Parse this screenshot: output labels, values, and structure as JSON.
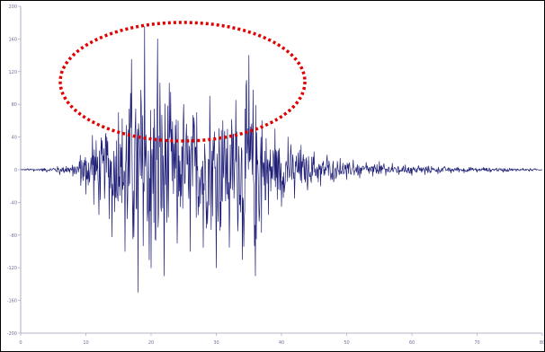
{
  "chart_data": {
    "type": "line",
    "title": "",
    "xlabel": "",
    "ylabel": "",
    "xlim": [
      0,
      80
    ],
    "ylim": [
      -200,
      200
    ],
    "x_ticks": [
      0,
      10,
      20,
      30,
      40,
      50,
      60,
      70,
      80
    ],
    "y_ticks": [
      200,
      160,
      120,
      80,
      40,
      0,
      -40,
      -80,
      -120,
      -160,
      -200
    ],
    "grid": false,
    "legend": "none",
    "series_color": "#1f1f78",
    "annotation_color": "#e00000",
    "series": [
      {
        "x": [
          0,
          1,
          2,
          3,
          4,
          5,
          6,
          7,
          8,
          9,
          10,
          11,
          12,
          13,
          14,
          15,
          16,
          17,
          18,
          19,
          20,
          21,
          22,
          23,
          24,
          25,
          26,
          27,
          28,
          29,
          30,
          31,
          32,
          33,
          34,
          35,
          36,
          37,
          38,
          39,
          40,
          41,
          42,
          43,
          44,
          45,
          46,
          47,
          48,
          49,
          50,
          51,
          52,
          53,
          54,
          55,
          56,
          57,
          58,
          59,
          60,
          61,
          62,
          63,
          64,
          65,
          66,
          67,
          68,
          69,
          70,
          71,
          72,
          73,
          74,
          75,
          76,
          77,
          78,
          79,
          80
        ],
        "y": [
          0,
          1,
          -2,
          1,
          -3,
          2,
          -6,
          4,
          -8,
          10,
          -30,
          42,
          -55,
          40,
          -82,
          70,
          -100,
          135,
          -150,
          175,
          -120,
          160,
          -130,
          95,
          -90,
          80,
          -100,
          70,
          -95,
          90,
          -120,
          60,
          -95,
          85,
          -110,
          140,
          -130,
          60,
          -55,
          50,
          -45,
          40,
          -35,
          30,
          -25,
          22,
          -20,
          18,
          -15,
          14,
          -12,
          12,
          -10,
          9,
          -8,
          10,
          -7,
          8,
          -6,
          6,
          -7,
          5,
          -6,
          4,
          -5,
          4,
          -4,
          3,
          -4,
          3,
          -3,
          3,
          -3,
          2,
          -3,
          2,
          -2,
          2,
          -2,
          1,
          0
        ]
      }
    ]
  }
}
